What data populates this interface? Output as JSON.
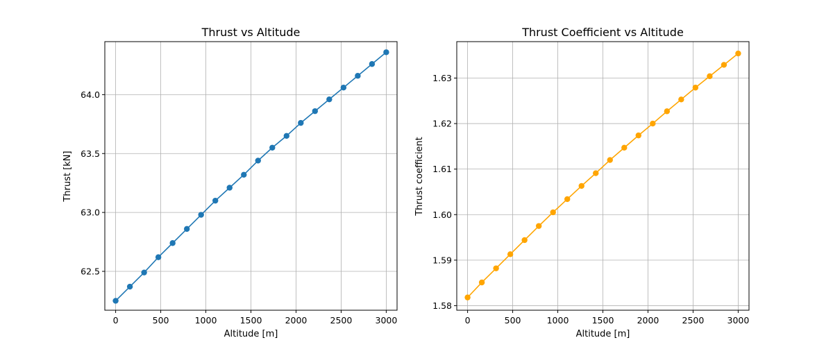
{
  "chart_data": [
    {
      "type": "line",
      "title": "Thrust vs Altitude",
      "xlabel": "Altitude [m]",
      "ylabel": "Thrust [kN]",
      "xlim": [
        -120,
        3120
      ],
      "ylim": [
        62.17,
        64.45
      ],
      "xticks": [
        0,
        500,
        1000,
        1500,
        2000,
        2500,
        3000
      ],
      "yticks": [
        62.5,
        63.0,
        63.5,
        64.0
      ],
      "ytick_labels": [
        "62.5",
        "63.0",
        "63.5",
        "64.0"
      ],
      "grid": true,
      "color": "#1f77b4",
      "marker": "circle",
      "series": [
        {
          "x": [
            0,
            157.9,
            315.8,
            473.7,
            631.6,
            789.5,
            947.4,
            1105.3,
            1263.2,
            1421.1,
            1578.9,
            1736.8,
            1894.7,
            2052.6,
            2210.5,
            2368.4,
            2526.3,
            2684.2,
            2842.1,
            3000
          ],
          "values": [
            62.25,
            62.37,
            62.49,
            62.62,
            62.74,
            62.86,
            62.98,
            63.1,
            63.21,
            63.32,
            63.44,
            63.55,
            63.65,
            63.76,
            63.86,
            63.96,
            64.06,
            64.16,
            64.26,
            64.36
          ]
        }
      ]
    },
    {
      "type": "line",
      "title": "Thrust Coefficient vs Altitude",
      "xlabel": "Altitude [m]",
      "ylabel": "Thrust coefficient",
      "xlim": [
        -120,
        3120
      ],
      "ylim": [
        1.579,
        1.638
      ],
      "xticks": [
        0,
        500,
        1000,
        1500,
        2000,
        2500,
        3000
      ],
      "yticks": [
        1.58,
        1.59,
        1.6,
        1.61,
        1.62,
        1.63
      ],
      "ytick_labels": [
        "1.58",
        "1.59",
        "1.60",
        "1.61",
        "1.62",
        "1.63"
      ],
      "grid": true,
      "color": "#ffa500",
      "marker": "circle",
      "series": [
        {
          "x": [
            0,
            157.9,
            315.8,
            473.7,
            631.6,
            789.5,
            947.4,
            1105.3,
            1263.2,
            1421.1,
            1578.9,
            1736.8,
            1894.7,
            2052.6,
            2210.5,
            2368.4,
            2526.3,
            2684.2,
            2842.1,
            3000
          ],
          "values": [
            1.5818,
            1.5851,
            1.5882,
            1.5913,
            1.5944,
            1.5975,
            1.6005,
            1.6034,
            1.6063,
            1.6091,
            1.612,
            1.6147,
            1.6174,
            1.62,
            1.6227,
            1.6253,
            1.6279,
            1.6304,
            1.6329,
            1.6354
          ]
        }
      ]
    }
  ]
}
